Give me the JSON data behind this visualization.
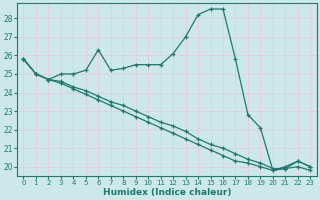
{
  "xlabel": "Humidex (Indice chaleur)",
  "bg_color": "#cce8e8",
  "grid_color": "#e8cce0",
  "line_color": "#1a7a6e",
  "xlim": [
    -0.5,
    23.5
  ],
  "ylim": [
    19.5,
    28.8
  ],
  "yticks": [
    20,
    21,
    22,
    23,
    24,
    25,
    26,
    27,
    28
  ],
  "xticks": [
    0,
    1,
    2,
    3,
    4,
    5,
    6,
    7,
    8,
    9,
    10,
    11,
    12,
    13,
    14,
    15,
    16,
    17,
    18,
    19,
    20,
    21,
    22,
    23
  ],
  "line1_x": [
    0,
    1,
    2,
    3,
    4,
    5,
    6,
    7,
    8,
    9,
    10,
    11,
    12,
    13,
    14,
    15,
    16,
    17,
    18,
    19,
    20,
    21,
    22,
    23
  ],
  "line1_y": [
    25.8,
    25.0,
    24.7,
    25.0,
    25.0,
    25.2,
    26.3,
    25.2,
    25.3,
    25.5,
    25.5,
    25.5,
    26.1,
    27.0,
    28.2,
    28.5,
    28.5,
    25.8,
    22.8,
    22.1,
    19.8,
    20.0,
    20.3,
    20.0
  ],
  "line2_x": [
    0,
    1,
    2,
    3,
    4,
    5,
    6,
    7,
    8,
    9,
    10,
    11,
    12,
    13,
    14,
    15,
    16,
    17,
    18,
    19,
    20,
    21,
    22,
    23
  ],
  "line2_y": [
    25.8,
    25.0,
    24.7,
    24.6,
    24.3,
    24.1,
    23.8,
    23.5,
    23.3,
    23.0,
    22.7,
    22.4,
    22.2,
    21.9,
    21.5,
    21.2,
    21.0,
    20.7,
    20.4,
    20.2,
    19.9,
    19.9,
    20.3,
    20.0
  ],
  "line3_x": [
    0,
    1,
    2,
    3,
    4,
    5,
    6,
    7,
    8,
    9,
    10,
    11,
    12,
    13,
    14,
    15,
    16,
    17,
    18,
    19,
    20,
    21,
    22,
    23
  ],
  "line3_y": [
    25.8,
    25.0,
    24.7,
    24.5,
    24.2,
    23.9,
    23.6,
    23.3,
    23.0,
    22.7,
    22.4,
    22.1,
    21.8,
    21.5,
    21.2,
    20.9,
    20.6,
    20.3,
    20.2,
    20.0,
    19.8,
    19.9,
    20.0,
    19.8
  ]
}
